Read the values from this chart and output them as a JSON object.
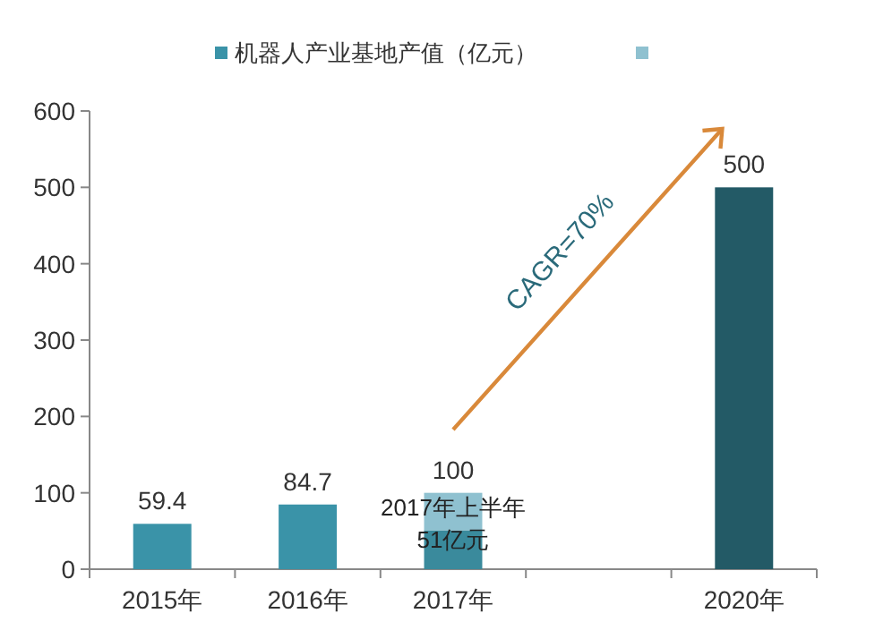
{
  "chart_data": {
    "type": "bar",
    "stacked": true,
    "categories": [
      "2015年",
      "2016年",
      "2017年",
      null,
      "2020年"
    ],
    "series": [
      {
        "name": "机器人产业基地产值（亿元）",
        "color": "#3a93a8",
        "colors": [
          "#3a93a8",
          "#3a93a8",
          "#3a8a9c",
          null,
          "#235a66"
        ],
        "values": [
          59.4,
          84.7,
          51,
          null,
          500
        ],
        "value_labels": [
          "59.4",
          "84.7",
          null,
          null,
          "500"
        ]
      },
      {
        "color": "#8fc1d0",
        "values": [
          null,
          null,
          49,
          null,
          null
        ]
      }
    ],
    "totals": [
      null,
      null,
      "100",
      null,
      null
    ],
    "ylim": [
      0,
      600
    ],
    "yticks": [
      0,
      100,
      200,
      300,
      400,
      500,
      600
    ],
    "grid": false,
    "legend": "top",
    "annotations": [
      {
        "text": "2017年上半年\n51亿元",
        "x": "2017年",
        "y": 51
      },
      "CAGR=70%"
    ]
  }
}
